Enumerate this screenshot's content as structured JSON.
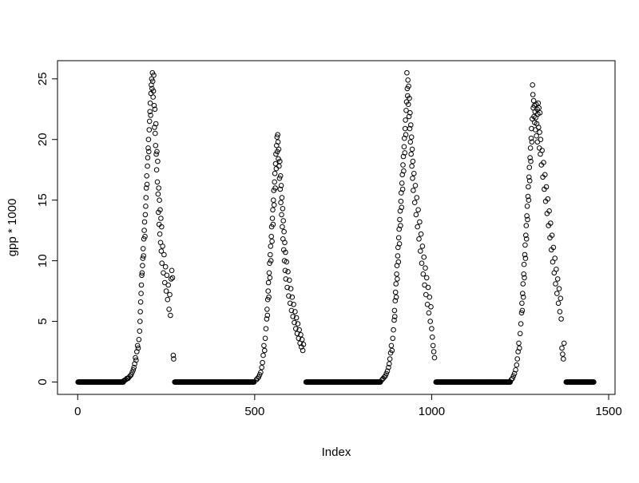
{
  "chart_data": {
    "type": "scatter",
    "title": "",
    "xlabel": "Index",
    "ylabel": "gpp * 1000",
    "xlim": [
      -57,
      1518
    ],
    "ylim": [
      -1.02,
      26.5
    ],
    "x_ticks": [
      0,
      500,
      1000,
      1500
    ],
    "y_ticks": [
      0,
      5,
      10,
      15,
      20,
      25
    ],
    "grid": false,
    "legend": false,
    "point_style": {
      "marker": "open-circle",
      "color": "#000000"
    },
    "zero_runs": [
      [
        1,
        129
      ],
      [
        274,
        498
      ],
      [
        645,
        855
      ],
      [
        1012,
        1222
      ],
      [
        1380,
        1458
      ]
    ],
    "points": [
      [
        130,
        0.1
      ],
      [
        133,
        0.15
      ],
      [
        136,
        0.2
      ],
      [
        139,
        0.3
      ],
      [
        142,
        0.3
      ],
      [
        145,
        0.4
      ],
      [
        148,
        0.5
      ],
      [
        151,
        0.6
      ],
      [
        154,
        0.8
      ],
      [
        157,
        1.0
      ],
      [
        159,
        1.2
      ],
      [
        161,
        1.5
      ],
      [
        163,
        2.0
      ],
      [
        165,
        1.8
      ],
      [
        167,
        2.5
      ],
      [
        169,
        3.0
      ],
      [
        171,
        2.8
      ],
      [
        173,
        3.5
      ],
      [
        175,
        4.2
      ],
      [
        176,
        5.0
      ],
      [
        177,
        5.8
      ],
      [
        178,
        6.6
      ],
      [
        179,
        7.3
      ],
      [
        180,
        8.0
      ],
      [
        181,
        8.8
      ],
      [
        182,
        9.0
      ],
      [
        183,
        9.6
      ],
      [
        184,
        10.2
      ],
      [
        185,
        11.0
      ],
      [
        186,
        10.4
      ],
      [
        187,
        11.8
      ],
      [
        188,
        12.5
      ],
      [
        189,
        13.2
      ],
      [
        190,
        12.0
      ],
      [
        191,
        13.8
      ],
      [
        192,
        14.5
      ],
      [
        193,
        15.2
      ],
      [
        194,
        16.0
      ],
      [
        195,
        17.0
      ],
      [
        196,
        16.3
      ],
      [
        197,
        17.8
      ],
      [
        198,
        18.5
      ],
      [
        199,
        19.3
      ],
      [
        200,
        20.0
      ],
      [
        201,
        19.0
      ],
      [
        202,
        20.8
      ],
      [
        203,
        21.5
      ],
      [
        204,
        22.3
      ],
      [
        205,
        23.0
      ],
      [
        206,
        22.0
      ],
      [
        207,
        23.8
      ],
      [
        208,
        24.5
      ],
      [
        209,
        25.0
      ],
      [
        210,
        24.2
      ],
      [
        211,
        25.5
      ],
      [
        212,
        24.8
      ],
      [
        213,
        23.5
      ],
      [
        214,
        24.0
      ],
      [
        215,
        25.3
      ],
      [
        216,
        22.8
      ],
      [
        217,
        21.0
      ],
      [
        218,
        22.5
      ],
      [
        219,
        20.5
      ],
      [
        220,
        19.5
      ],
      [
        221,
        21.3
      ],
      [
        222,
        18.8
      ],
      [
        223,
        17.5
      ],
      [
        224,
        19.0
      ],
      [
        225,
        16.5
      ],
      [
        226,
        18.2
      ],
      [
        227,
        15.5
      ],
      [
        228,
        14.0
      ],
      [
        229,
        16.0
      ],
      [
        230,
        13.0
      ],
      [
        231,
        15.0
      ],
      [
        232,
        12.2
      ],
      [
        233,
        14.2
      ],
      [
        234,
        11.5
      ],
      [
        235,
        13.5
      ],
      [
        236,
        10.8
      ],
      [
        237,
        12.8
      ],
      [
        238,
        9.8
      ],
      [
        240,
        11.2
      ],
      [
        242,
        9.0
      ],
      [
        244,
        10.5
      ],
      [
        246,
        8.2
      ],
      [
        248,
        9.5
      ],
      [
        250,
        7.5
      ],
      [
        252,
        8.8
      ],
      [
        254,
        6.8
      ],
      [
        256,
        8.0
      ],
      [
        258,
        6.0
      ],
      [
        260,
        7.2
      ],
      [
        262,
        5.5
      ],
      [
        264,
        8.5
      ],
      [
        266,
        9.2
      ],
      [
        268,
        8.6
      ],
      [
        270,
        2.2
      ],
      [
        271,
        1.9
      ],
      [
        505,
        0.2
      ],
      [
        508,
        0.3
      ],
      [
        511,
        0.4
      ],
      [
        514,
        0.6
      ],
      [
        517,
        0.8
      ],
      [
        520,
        1.2
      ],
      [
        522,
        1.6
      ],
      [
        524,
        2.2
      ],
      [
        526,
        3.0
      ],
      [
        528,
        2.6
      ],
      [
        530,
        3.6
      ],
      [
        532,
        4.4
      ],
      [
        534,
        5.2
      ],
      [
        535,
        6.0
      ],
      [
        536,
        5.5
      ],
      [
        537,
        6.8
      ],
      [
        538,
        7.5
      ],
      [
        539,
        8.2
      ],
      [
        540,
        7.0
      ],
      [
        541,
        9.0
      ],
      [
        542,
        9.8
      ],
      [
        543,
        8.6
      ],
      [
        544,
        10.5
      ],
      [
        545,
        11.2
      ],
      [
        546,
        10.0
      ],
      [
        547,
        12.0
      ],
      [
        548,
        12.8
      ],
      [
        549,
        11.6
      ],
      [
        550,
        13.5
      ],
      [
        551,
        14.2
      ],
      [
        552,
        13.0
      ],
      [
        553,
        15.0
      ],
      [
        554,
        15.8
      ],
      [
        555,
        14.6
      ],
      [
        556,
        16.5
      ],
      [
        557,
        17.2
      ],
      [
        558,
        16.0
      ],
      [
        559,
        18.0
      ],
      [
        560,
        18.8
      ],
      [
        561,
        17.6
      ],
      [
        562,
        19.5
      ],
      [
        563,
        20.2
      ],
      [
        564,
        19.0
      ],
      [
        565,
        20.4
      ],
      [
        566,
        19.8
      ],
      [
        567,
        18.4
      ],
      [
        568,
        19.2
      ],
      [
        569,
        17.8
      ],
      [
        570,
        16.8
      ],
      [
        571,
        18.2
      ],
      [
        572,
        15.9
      ],
      [
        573,
        17.0
      ],
      [
        574,
        14.8
      ],
      [
        575,
        16.2
      ],
      [
        576,
        13.8
      ],
      [
        577,
        15.2
      ],
      [
        578,
        12.8
      ],
      [
        579,
        14.3
      ],
      [
        580,
        11.8
      ],
      [
        581,
        13.3
      ],
      [
        582,
        10.9
      ],
      [
        583,
        12.4
      ],
      [
        584,
        10.0
      ],
      [
        585,
        11.5
      ],
      [
        586,
        9.2
      ],
      [
        587,
        10.7
      ],
      [
        588,
        8.5
      ],
      [
        590,
        9.9
      ],
      [
        592,
        7.8
      ],
      [
        594,
        9.1
      ],
      [
        596,
        7.1
      ],
      [
        598,
        8.4
      ],
      [
        600,
        6.5
      ],
      [
        602,
        7.7
      ],
      [
        604,
        5.9
      ],
      [
        606,
        7.0
      ],
      [
        608,
        5.4
      ],
      [
        610,
        6.4
      ],
      [
        612,
        4.9
      ],
      [
        614,
        5.8
      ],
      [
        616,
        4.4
      ],
      [
        618,
        5.3
      ],
      [
        620,
        4.0
      ],
      [
        622,
        4.8
      ],
      [
        624,
        3.6
      ],
      [
        626,
        4.3
      ],
      [
        628,
        3.2
      ],
      [
        630,
        3.9
      ],
      [
        632,
        2.9
      ],
      [
        634,
        3.5
      ],
      [
        636,
        2.6
      ],
      [
        638,
        3.1
      ],
      [
        860,
        0.2
      ],
      [
        863,
        0.3
      ],
      [
        866,
        0.4
      ],
      [
        869,
        0.5
      ],
      [
        872,
        0.7
      ],
      [
        875,
        0.9
      ],
      [
        878,
        1.2
      ],
      [
        880,
        1.5
      ],
      [
        882,
        1.9
      ],
      [
        884,
        2.4
      ],
      [
        886,
        3.0
      ],
      [
        888,
        2.6
      ],
      [
        890,
        3.6
      ],
      [
        892,
        4.3
      ],
      [
        894,
        5.1
      ],
      [
        895,
        5.9
      ],
      [
        896,
        5.4
      ],
      [
        897,
        6.7
      ],
      [
        898,
        7.4
      ],
      [
        899,
        8.1
      ],
      [
        900,
        7.0
      ],
      [
        901,
        8.9
      ],
      [
        902,
        9.6
      ],
      [
        903,
        8.5
      ],
      [
        904,
        10.4
      ],
      [
        905,
        11.1
      ],
      [
        906,
        9.9
      ],
      [
        907,
        11.9
      ],
      [
        908,
        12.6
      ],
      [
        909,
        11.4
      ],
      [
        910,
        13.4
      ],
      [
        911,
        14.1
      ],
      [
        912,
        12.9
      ],
      [
        913,
        14.9
      ],
      [
        914,
        15.6
      ],
      [
        915,
        14.4
      ],
      [
        916,
        16.4
      ],
      [
        917,
        17.1
      ],
      [
        918,
        15.9
      ],
      [
        919,
        17.9
      ],
      [
        920,
        18.6
      ],
      [
        921,
        17.4
      ],
      [
        922,
        19.4
      ],
      [
        923,
        20.1
      ],
      [
        924,
        18.9
      ],
      [
        925,
        20.9
      ],
      [
        926,
        21.6
      ],
      [
        927,
        20.4
      ],
      [
        928,
        22.4
      ],
      [
        929,
        23.1
      ],
      [
        930,
        25.5
      ],
      [
        931,
        24.2
      ],
      [
        932,
        23.6
      ],
      [
        933,
        24.9
      ],
      [
        934,
        22.9
      ],
      [
        935,
        24.4
      ],
      [
        936,
        21.9
      ],
      [
        937,
        23.4
      ],
      [
        938,
        20.9
      ],
      [
        939,
        22.2
      ],
      [
        940,
        19.8
      ],
      [
        941,
        21.2
      ],
      [
        942,
        18.8
      ],
      [
        943,
        20.2
      ],
      [
        944,
        17.8
      ],
      [
        945,
        19.2
      ],
      [
        946,
        16.8
      ],
      [
        947,
        18.2
      ],
      [
        948,
        15.8
      ],
      [
        950,
        17.2
      ],
      [
        952,
        14.8
      ],
      [
        954,
        16.2
      ],
      [
        956,
        13.8
      ],
      [
        958,
        15.2
      ],
      [
        960,
        12.8
      ],
      [
        962,
        14.2
      ],
      [
        964,
        11.8
      ],
      [
        966,
        13.2
      ],
      [
        968,
        10.8
      ],
      [
        970,
        12.2
      ],
      [
        972,
        9.8
      ],
      [
        974,
        11.2
      ],
      [
        976,
        8.9
      ],
      [
        978,
        10.3
      ],
      [
        980,
        8.0
      ],
      [
        982,
        9.4
      ],
      [
        984,
        7.2
      ],
      [
        986,
        8.6
      ],
      [
        988,
        6.4
      ],
      [
        990,
        7.8
      ],
      [
        992,
        5.7
      ],
      [
        994,
        7.0
      ],
      [
        996,
        5.0
      ],
      [
        998,
        6.2
      ],
      [
        1000,
        4.4
      ],
      [
        1002,
        3.7
      ],
      [
        1004,
        3.0
      ],
      [
        1006,
        2.5
      ],
      [
        1008,
        2.0
      ],
      [
        1225,
        0.2
      ],
      [
        1228,
        0.3
      ],
      [
        1231,
        0.5
      ],
      [
        1234,
        0.7
      ],
      [
        1237,
        1.0
      ],
      [
        1240,
        1.4
      ],
      [
        1242,
        1.9
      ],
      [
        1244,
        2.5
      ],
      [
        1246,
        3.2
      ],
      [
        1248,
        2.8
      ],
      [
        1250,
        4.0
      ],
      [
        1252,
        4.8
      ],
      [
        1254,
        5.7
      ],
      [
        1255,
        6.5
      ],
      [
        1256,
        5.9
      ],
      [
        1257,
        7.3
      ],
      [
        1258,
        8.1
      ],
      [
        1259,
        7.0
      ],
      [
        1260,
        8.9
      ],
      [
        1261,
        9.7
      ],
      [
        1262,
        8.6
      ],
      [
        1263,
        10.5
      ],
      [
        1264,
        11.3
      ],
      [
        1265,
        10.2
      ],
      [
        1266,
        12.1
      ],
      [
        1267,
        12.9
      ],
      [
        1268,
        11.8
      ],
      [
        1269,
        13.7
      ],
      [
        1270,
        14.5
      ],
      [
        1271,
        13.4
      ],
      [
        1272,
        15.3
      ],
      [
        1273,
        16.1
      ],
      [
        1274,
        15.0
      ],
      [
        1275,
        16.9
      ],
      [
        1276,
        17.7
      ],
      [
        1277,
        16.6
      ],
      [
        1278,
        18.5
      ],
      [
        1279,
        19.3
      ],
      [
        1280,
        18.2
      ],
      [
        1281,
        20.1
      ],
      [
        1282,
        20.9
      ],
      [
        1283,
        19.8
      ],
      [
        1284,
        21.7
      ],
      [
        1285,
        24.5
      ],
      [
        1286,
        23.7
      ],
      [
        1287,
        22.6
      ],
      [
        1288,
        23.2
      ],
      [
        1289,
        21.9
      ],
      [
        1290,
        22.8
      ],
      [
        1291,
        21.4
      ],
      [
        1292,
        22.3
      ],
      [
        1293,
        20.8
      ],
      [
        1294,
        21.8
      ],
      [
        1295,
        22.9
      ],
      [
        1296,
        20.3
      ],
      [
        1297,
        21.3
      ],
      [
        1298,
        22.5
      ],
      [
        1299,
        19.8
      ],
      [
        1300,
        22.1
      ],
      [
        1301,
        23.0
      ],
      [
        1302,
        21.0
      ],
      [
        1303,
        22.6
      ],
      [
        1304,
        19.3
      ],
      [
        1305,
        20.6
      ],
      [
        1306,
        22.2
      ],
      [
        1307,
        18.8
      ],
      [
        1308,
        20.0
      ],
      [
        1310,
        17.9
      ],
      [
        1312,
        19.1
      ],
      [
        1314,
        16.9
      ],
      [
        1316,
        18.1
      ],
      [
        1318,
        15.9
      ],
      [
        1320,
        17.1
      ],
      [
        1322,
        14.9
      ],
      [
        1324,
        16.1
      ],
      [
        1326,
        13.9
      ],
      [
        1328,
        15.1
      ],
      [
        1330,
        12.9
      ],
      [
        1332,
        14.1
      ],
      [
        1334,
        11.9
      ],
      [
        1336,
        13.1
      ],
      [
        1338,
        10.9
      ],
      [
        1340,
        12.1
      ],
      [
        1342,
        9.9
      ],
      [
        1344,
        11.1
      ],
      [
        1346,
        9.0
      ],
      [
        1348,
        10.2
      ],
      [
        1350,
        8.1
      ],
      [
        1352,
        9.3
      ],
      [
        1354,
        7.3
      ],
      [
        1356,
        8.5
      ],
      [
        1358,
        6.5
      ],
      [
        1360,
        7.7
      ],
      [
        1362,
        5.8
      ],
      [
        1364,
        6.9
      ],
      [
        1366,
        5.2
      ],
      [
        1368,
        2.8
      ],
      [
        1370,
        2.3
      ],
      [
        1372,
        1.9
      ],
      [
        1374,
        3.2
      ]
    ]
  }
}
